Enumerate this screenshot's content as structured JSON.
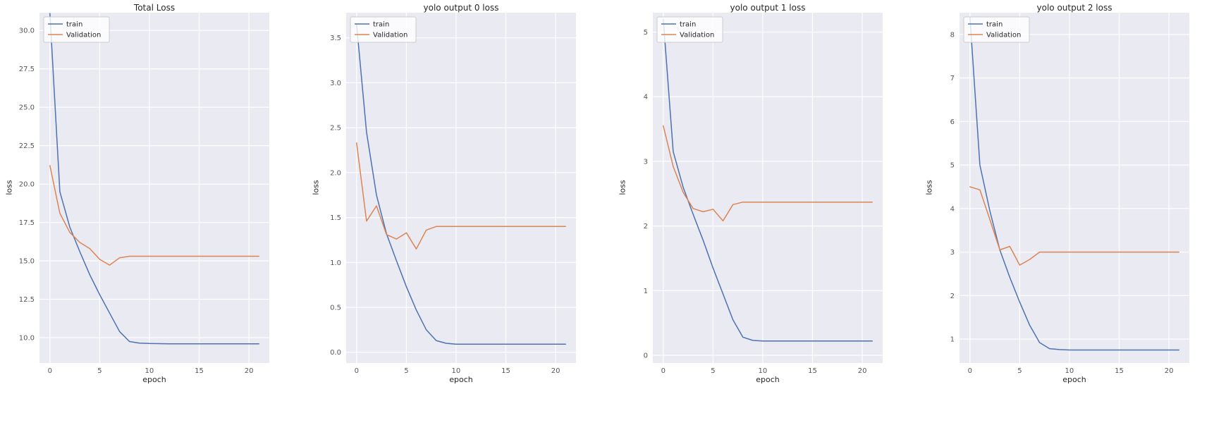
{
  "colors": {
    "plot_bg": "#eaeaf2",
    "grid": "#ffffff",
    "train": "#4c72b0",
    "validation": "#dd8452",
    "tick_text": "#555555",
    "label_text": "#262626",
    "legend_bg": "rgba(255,255,255,0.8)",
    "legend_border": "#cccccc"
  },
  "chart_data": [
    {
      "type": "line",
      "title": "Total Loss",
      "xlabel": "epoch",
      "ylabel": "loss",
      "xlim": [
        -1.05,
        22.05
      ],
      "ylim": [
        8.35,
        31.15
      ],
      "xticks": {
        "values": [
          0,
          5,
          10,
          15,
          20
        ],
        "labels": [
          "0",
          "5",
          "10",
          "15",
          "20"
        ]
      },
      "yticks": {
        "values": [
          10,
          12.5,
          15,
          17.5,
          20,
          22.5,
          25,
          27.5,
          30
        ],
        "labels": [
          "10.0",
          "12.5",
          "15.0",
          "17.5",
          "20.0",
          "22.5",
          "25.0",
          "27.5",
          "30.0"
        ]
      },
      "x": [
        0,
        1,
        2,
        3,
        4,
        5,
        6,
        7,
        8,
        9,
        10,
        11,
        12,
        13,
        14,
        15,
        16,
        17,
        18,
        19,
        20,
        21
      ],
      "series": [
        {
          "name": "train",
          "color_key": "train",
          "values": [
            31.1,
            19.5,
            17.2,
            15.6,
            14.1,
            12.8,
            11.6,
            10.4,
            9.75,
            9.65,
            9.62,
            9.61,
            9.6,
            9.6,
            9.6,
            9.6,
            9.6,
            9.6,
            9.6,
            9.6,
            9.6,
            9.6
          ]
        },
        {
          "name": "Validation",
          "color_key": "validation",
          "values": [
            21.2,
            18.1,
            16.85,
            16.2,
            15.8,
            15.1,
            14.72,
            15.2,
            15.3,
            15.3,
            15.3,
            15.3,
            15.3,
            15.3,
            15.3,
            15.3,
            15.3,
            15.3,
            15.3,
            15.3,
            15.3,
            15.3
          ]
        }
      ],
      "legend": {
        "position": "upper-left",
        "labels": [
          "train",
          "Validation"
        ]
      }
    },
    {
      "type": "line",
      "title": "yolo output 0 loss",
      "xlabel": "epoch",
      "ylabel": "loss",
      "xlim": [
        -1.05,
        22.05
      ],
      "ylim": [
        -0.12,
        3.78
      ],
      "xticks": {
        "values": [
          0,
          5,
          10,
          15,
          20
        ],
        "labels": [
          "0",
          "5",
          "10",
          "15",
          "20"
        ]
      },
      "yticks": {
        "values": [
          0,
          0.5,
          1,
          1.5,
          2,
          2.5,
          3,
          3.5
        ],
        "labels": [
          "0.0",
          "0.5",
          "1.0",
          "1.5",
          "2.0",
          "2.5",
          "3.0",
          "3.5"
        ]
      },
      "x": [
        0,
        1,
        2,
        3,
        4,
        5,
        6,
        7,
        8,
        9,
        10,
        11,
        12,
        13,
        14,
        15,
        16,
        17,
        18,
        19,
        20,
        21
      ],
      "series": [
        {
          "name": "train",
          "color_key": "train",
          "values": [
            3.65,
            2.45,
            1.75,
            1.32,
            1.02,
            0.73,
            0.47,
            0.25,
            0.13,
            0.1,
            0.09,
            0.09,
            0.09,
            0.09,
            0.09,
            0.09,
            0.09,
            0.09,
            0.09,
            0.09,
            0.09,
            0.09
          ]
        },
        {
          "name": "Validation",
          "color_key": "validation",
          "values": [
            2.33,
            1.46,
            1.63,
            1.31,
            1.26,
            1.33,
            1.15,
            1.36,
            1.4,
            1.4,
            1.4,
            1.4,
            1.4,
            1.4,
            1.4,
            1.4,
            1.4,
            1.4,
            1.4,
            1.4,
            1.4,
            1.4
          ]
        }
      ],
      "legend": {
        "position": "upper-left",
        "labels": [
          "train",
          "Validation"
        ]
      }
    },
    {
      "type": "line",
      "title": "yolo output 1 loss",
      "xlabel": "epoch",
      "ylabel": "loss",
      "xlim": [
        -1.05,
        22.05
      ],
      "ylim": [
        -0.12,
        5.3
      ],
      "xticks": {
        "values": [
          0,
          5,
          10,
          15,
          20
        ],
        "labels": [
          "0",
          "5",
          "10",
          "15",
          "20"
        ]
      },
      "yticks": {
        "values": [
          0,
          1,
          2,
          3,
          4,
          5
        ],
        "labels": [
          "0",
          "1",
          "2",
          "3",
          "4",
          "5"
        ]
      },
      "x": [
        0,
        1,
        2,
        3,
        4,
        5,
        6,
        7,
        8,
        9,
        10,
        11,
        12,
        13,
        14,
        15,
        16,
        17,
        18,
        19,
        20,
        21
      ],
      "series": [
        {
          "name": "train",
          "color_key": "train",
          "values": [
            5.2,
            3.15,
            2.6,
            2.18,
            1.78,
            1.35,
            0.95,
            0.55,
            0.28,
            0.23,
            0.22,
            0.22,
            0.22,
            0.22,
            0.22,
            0.22,
            0.22,
            0.22,
            0.22,
            0.22,
            0.22,
            0.22
          ]
        },
        {
          "name": "Validation",
          "color_key": "validation",
          "values": [
            3.55,
            2.92,
            2.52,
            2.27,
            2.22,
            2.26,
            2.08,
            2.33,
            2.37,
            2.37,
            2.37,
            2.37,
            2.37,
            2.37,
            2.37,
            2.37,
            2.37,
            2.37,
            2.37,
            2.37,
            2.37,
            2.37
          ]
        }
      ],
      "legend": {
        "position": "upper-left",
        "labels": [
          "train",
          "Validation"
        ]
      }
    },
    {
      "type": "line",
      "title": "yolo output 2 loss",
      "xlabel": "epoch",
      "ylabel": "loss",
      "xlim": [
        -1.05,
        22.05
      ],
      "ylim": [
        0.45,
        8.5
      ],
      "xticks": {
        "values": [
          0,
          5,
          10,
          15,
          20
        ],
        "labels": [
          "0",
          "5",
          "10",
          "15",
          "20"
        ]
      },
      "yticks": {
        "values": [
          1,
          2,
          3,
          4,
          5,
          6,
          7,
          8
        ],
        "labels": [
          "1",
          "2",
          "3",
          "4",
          "5",
          "6",
          "7",
          "8"
        ]
      },
      "x": [
        0,
        1,
        2,
        3,
        4,
        5,
        6,
        7,
        8,
        9,
        10,
        11,
        12,
        13,
        14,
        15,
        16,
        17,
        18,
        19,
        20,
        21
      ],
      "series": [
        {
          "name": "train",
          "color_key": "train",
          "values": [
            8.4,
            5.0,
            3.95,
            3.05,
            2.42,
            1.85,
            1.32,
            0.92,
            0.78,
            0.76,
            0.75,
            0.75,
            0.75,
            0.75,
            0.75,
            0.75,
            0.75,
            0.75,
            0.75,
            0.75,
            0.75,
            0.75
          ]
        },
        {
          "name": "Validation",
          "color_key": "validation",
          "values": [
            4.5,
            4.43,
            3.75,
            3.05,
            3.13,
            2.7,
            2.83,
            3.0,
            3.0,
            3.0,
            3.0,
            3.0,
            3.0,
            3.0,
            3.0,
            3.0,
            3.0,
            3.0,
            3.0,
            3.0,
            3.0,
            3.0
          ]
        }
      ],
      "legend": {
        "position": "upper-left",
        "labels": [
          "train",
          "Validation"
        ]
      }
    }
  ]
}
